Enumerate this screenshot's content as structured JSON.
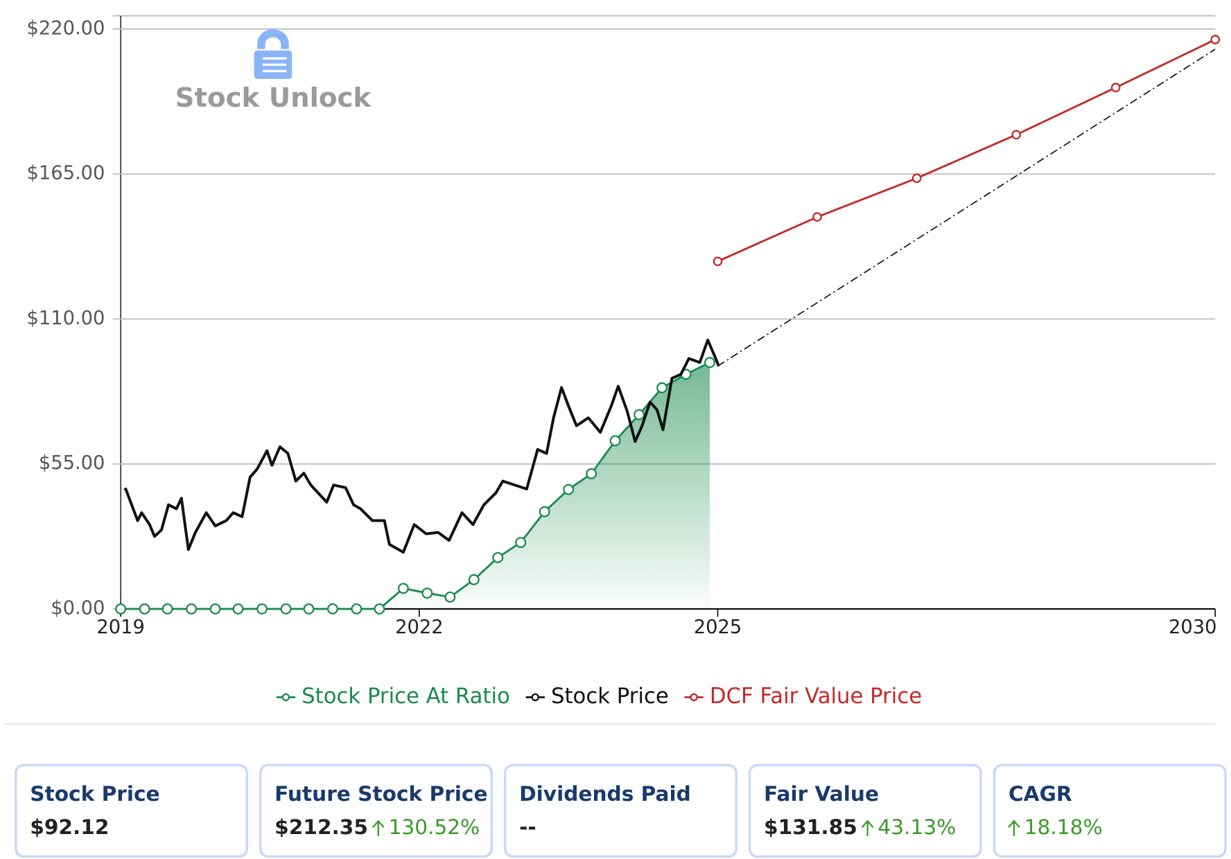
{
  "chart_data": {
    "type": "line",
    "watermark": "Stock Unlock",
    "xlim": [
      2019,
      2030
    ],
    "xticks": [
      2019,
      2022,
      2025,
      2030
    ],
    "ylim": [
      0,
      225
    ],
    "yticks": [
      {
        "value": 0,
        "label": "$0.00"
      },
      {
        "value": 55,
        "label": "$55.00"
      },
      {
        "value": 110,
        "label": "$110.00"
      },
      {
        "value": 165,
        "label": "$165.00"
      },
      {
        "value": 220,
        "label": "$220.00"
      }
    ],
    "grid": true,
    "series": [
      {
        "name": "Stock Price At Ratio",
        "color": "#1a8a4f",
        "markers": true,
        "fill": true,
        "x": [
          2019,
          2019.24,
          2019.47,
          2019.71,
          2019.95,
          2020.18,
          2020.42,
          2020.66,
          2020.89,
          2021.13,
          2021.37,
          2021.6,
          2021.84,
          2022.08,
          2022.31,
          2022.55,
          2022.79,
          2023.02,
          2023.26,
          2023.5,
          2023.73,
          2023.97,
          2024.21,
          2024.44,
          2024.68,
          2024.92
        ],
        "values": [
          0,
          0,
          0,
          0,
          0,
          0,
          0,
          0,
          0,
          0,
          0,
          0,
          7.8,
          6,
          4.5,
          11.1,
          19.5,
          25.2,
          36.9,
          45.3,
          51.3,
          63.8,
          73.7,
          83.9,
          89,
          93.5
        ]
      },
      {
        "name": "Stock Price",
        "color": "#111111",
        "markers": false,
        "fill": false,
        "x": [
          2019.04,
          2019.05,
          2019.17,
          2019.21,
          2019.29,
          2019.34,
          2019.41,
          2019.48,
          2019.56,
          2019.61,
          2019.68,
          2019.75,
          2019.86,
          2019.95,
          2020.06,
          2020.13,
          2020.22,
          2020.3,
          2020.37,
          2020.47,
          2020.52,
          2020.6,
          2020.68,
          2020.76,
          2020.84,
          2020.91,
          2021.07,
          2021.14,
          2021.26,
          2021.34,
          2021.41,
          2021.53,
          2021.65,
          2021.7,
          2021.84,
          2021.95,
          2022.07,
          2022.19,
          2022.3,
          2022.43,
          2022.54,
          2022.65,
          2022.77,
          2022.84,
          2022.96,
          2023.08,
          2023.19,
          2023.28,
          2023.35,
          2023.43,
          2023.5,
          2023.58,
          2023.7,
          2023.82,
          2023.93,
          2024,
          2024.09,
          2024.17,
          2024.24,
          2024.32,
          2024.39,
          2024.45,
          2024.54,
          2024.63,
          2024.71,
          2024.82,
          2024.9,
          2024.98,
          2025.01
        ],
        "values": [
          45,
          45.5,
          33.5,
          36.5,
          32,
          27.5,
          30,
          39.5,
          38,
          42,
          22.5,
          29,
          36.5,
          31.5,
          33.5,
          36.5,
          35,
          50,
          53,
          60,
          54.5,
          61.5,
          59,
          48.5,
          51.5,
          47,
          40.5,
          47,
          46,
          39.5,
          38,
          33.5,
          33.5,
          24.5,
          21.5,
          32,
          28.5,
          29,
          26,
          36.5,
          32,
          39.5,
          44,
          48.5,
          47,
          45.5,
          60.5,
          59,
          72.5,
          84,
          77,
          69.5,
          72.5,
          67,
          77,
          84.5,
          75,
          63.5,
          69.5,
          78.5,
          75.5,
          68,
          87.5,
          89,
          95,
          93.5,
          102,
          95,
          92.12
        ]
      },
      {
        "name": "DCF Fair Value Price",
        "color": "#c62828",
        "markers": true,
        "fill": false,
        "x": [
          2025,
          2026,
          2027,
          2028,
          2029,
          2030
        ],
        "values": [
          131.85,
          148.7,
          163.4,
          179.9,
          197.8,
          216
        ]
      }
    ],
    "projection": {
      "color": "#111111",
      "x": [
        2025,
        2030
      ],
      "values": [
        92.12,
        212.35
      ]
    }
  },
  "cards": [
    {
      "title": "Stock Price",
      "value": "$92.12"
    },
    {
      "title": "Future Stock Price",
      "value": "$212.35",
      "change": "130.52%"
    },
    {
      "title": "Dividends Paid",
      "value": "--"
    },
    {
      "title": "Fair Value",
      "value": "$131.85",
      "change": "43.13%"
    },
    {
      "title": "CAGR",
      "change": "18.18%"
    }
  ]
}
